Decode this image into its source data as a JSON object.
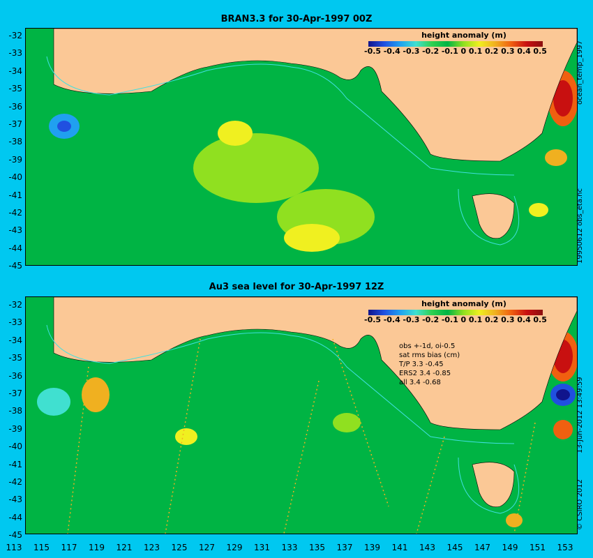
{
  "panel1": {
    "title": "BRAN3.3 for 30-Apr-1997 00Z",
    "side_label": "ocean_temp_1997",
    "side_label2": "19950612 obs_eta.nc"
  },
  "panel2": {
    "title": "Au3 sea level  for 30-Apr-1997 12Z",
    "side_label": "13-Jun-2012 13:49:59",
    "side_label2": "© CSIRO 2012",
    "stats": [
      "obs +-1d, oi-0.5",
      "sat rms bias (cm)",
      "T/P  3.3 -0.45",
      "ERS2  3.4 -0.85",
      "all 3.4 -0.68"
    ]
  },
  "legend": {
    "title": "height anomaly (m)",
    "ticks": [
      "-0.5",
      "-0.4",
      "-0.3",
      "-0.2",
      "-0.1",
      "0",
      "0.1",
      "0.2",
      "0.3",
      "0.4",
      "0.5"
    ]
  },
  "y_ticks": [
    "-32",
    "-33",
    "-34",
    "-35",
    "-36",
    "-37",
    "-38",
    "-39",
    "-40",
    "-41",
    "-42",
    "-43",
    "-44",
    "-45"
  ],
  "x_ticks": [
    "113",
    "115",
    "117",
    "119",
    "121",
    "123",
    "125",
    "127",
    "129",
    "131",
    "133",
    "135",
    "137",
    "139",
    "141",
    "143",
    "145",
    "147",
    "149",
    "151",
    "153"
  ],
  "colors": {
    "background": "#00c8f0",
    "land": "#fbc896",
    "ocean": "#00b444"
  }
}
